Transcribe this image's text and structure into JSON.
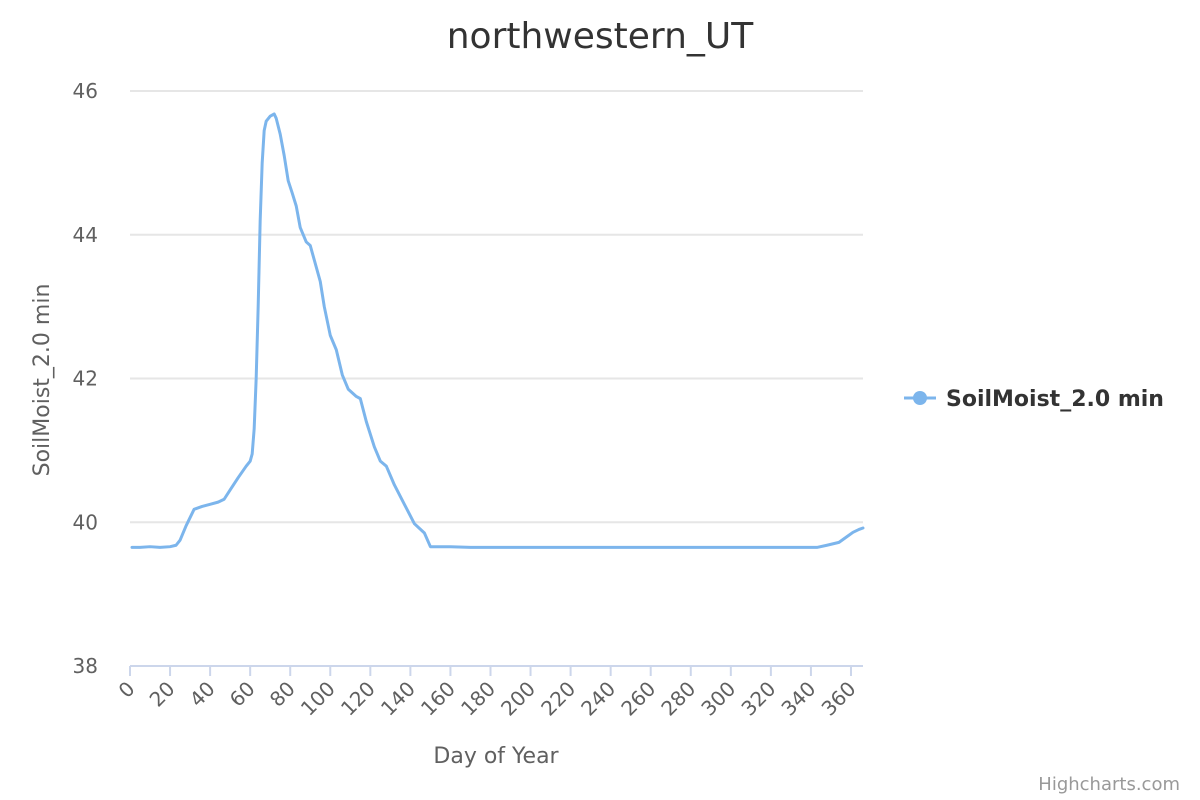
{
  "chart_data": {
    "type": "line",
    "title": "northwestern_UT",
    "xlabel": "Day of Year",
    "ylabel": "SoilMoist_2.0 min",
    "xlim": [
      0,
      366
    ],
    "ylim": [
      38,
      46
    ],
    "x_ticks": [
      0,
      20,
      40,
      60,
      80,
      100,
      120,
      140,
      160,
      180,
      200,
      220,
      240,
      260,
      280,
      300,
      320,
      340,
      360
    ],
    "y_ticks": [
      38,
      40,
      42,
      44,
      46
    ],
    "grid": "horizontal",
    "legend_position": "right",
    "series": [
      {
        "name": "SoilMoist_2.0 min",
        "color": "#7cb5ec",
        "points": [
          [
            1,
            39.65
          ],
          [
            5,
            39.65
          ],
          [
            10,
            39.66
          ],
          [
            15,
            39.65
          ],
          [
            20,
            39.66
          ],
          [
            23,
            39.68
          ],
          [
            25,
            39.75
          ],
          [
            28,
            39.95
          ],
          [
            32,
            40.18
          ],
          [
            36,
            40.22
          ],
          [
            40,
            40.25
          ],
          [
            44,
            40.28
          ],
          [
            47,
            40.32
          ],
          [
            50,
            40.45
          ],
          [
            54,
            40.62
          ],
          [
            58,
            40.78
          ],
          [
            60,
            40.85
          ],
          [
            61,
            40.95
          ],
          [
            62,
            41.3
          ],
          [
            63,
            42.0
          ],
          [
            64,
            43.0
          ],
          [
            65,
            44.2
          ],
          [
            66,
            45.0
          ],
          [
            67,
            45.45
          ],
          [
            68,
            45.58
          ],
          [
            70,
            45.65
          ],
          [
            72,
            45.68
          ],
          [
            73,
            45.62
          ],
          [
            75,
            45.4
          ],
          [
            77,
            45.1
          ],
          [
            79,
            44.75
          ],
          [
            81,
            44.58
          ],
          [
            83,
            44.4
          ],
          [
            85,
            44.1
          ],
          [
            88,
            43.9
          ],
          [
            90,
            43.85
          ],
          [
            92,
            43.65
          ],
          [
            95,
            43.35
          ],
          [
            97,
            43.0
          ],
          [
            100,
            42.6
          ],
          [
            103,
            42.4
          ],
          [
            106,
            42.05
          ],
          [
            109,
            41.85
          ],
          [
            111,
            41.8
          ],
          [
            113,
            41.75
          ],
          [
            115,
            41.72
          ],
          [
            118,
            41.4
          ],
          [
            122,
            41.05
          ],
          [
            125,
            40.85
          ],
          [
            128,
            40.78
          ],
          [
            132,
            40.52
          ],
          [
            137,
            40.25
          ],
          [
            142,
            39.98
          ],
          [
            147,
            39.85
          ],
          [
            150,
            39.66
          ],
          [
            155,
            39.66
          ],
          [
            160,
            39.66
          ],
          [
            170,
            39.65
          ],
          [
            180,
            39.65
          ],
          [
            200,
            39.65
          ],
          [
            220,
            39.65
          ],
          [
            240,
            39.65
          ],
          [
            260,
            39.65
          ],
          [
            280,
            39.65
          ],
          [
            300,
            39.65
          ],
          [
            320,
            39.65
          ],
          [
            343,
            39.65
          ],
          [
            348,
            39.68
          ],
          [
            354,
            39.72
          ],
          [
            358,
            39.8
          ],
          [
            361,
            39.86
          ],
          [
            364,
            39.9
          ],
          [
            366,
            39.92
          ]
        ]
      }
    ]
  },
  "credits": "Highcharts.com"
}
